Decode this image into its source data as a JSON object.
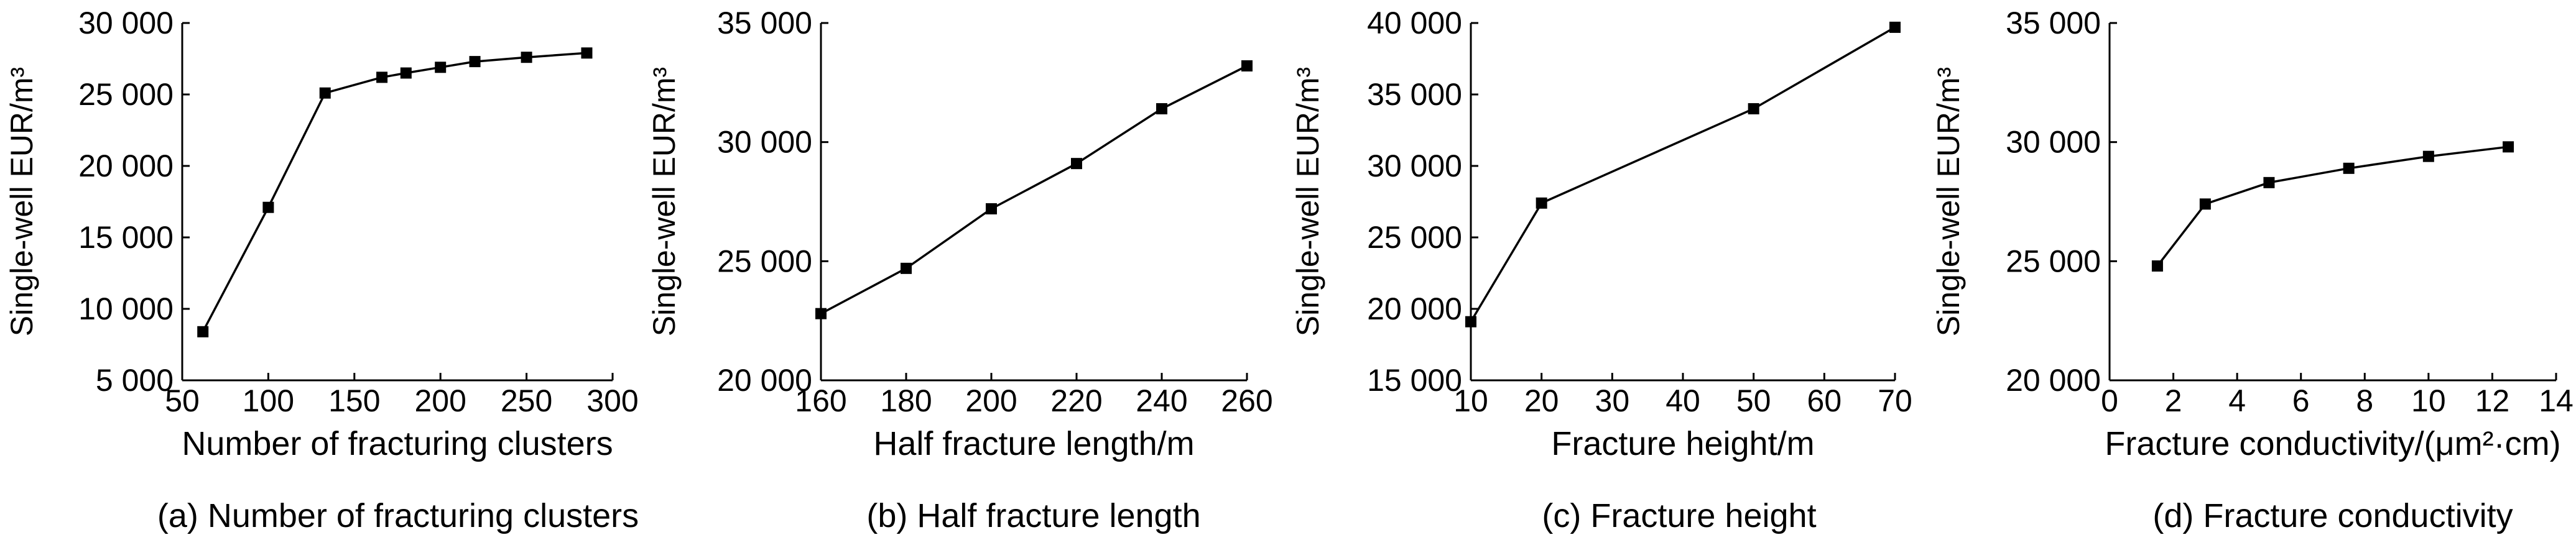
{
  "chart_data": [
    {
      "type": "line",
      "caption": "(a) Number of fracturing clusters",
      "xlabel": "Number of fracturing clusters",
      "ylabel": "Single-well EUR/m³",
      "xlim": [
        50,
        300
      ],
      "ylim": [
        5000,
        30000
      ],
      "xticks": [
        "50",
        "100",
        "150",
        "200",
        "250",
        "300"
      ],
      "yticks": [
        "5 000",
        "10 000",
        "15 000",
        "20 000",
        "25 000",
        "30 000"
      ],
      "x": [
        62,
        100,
        133,
        166,
        180,
        200,
        220,
        250,
        285
      ],
      "y": [
        8400,
        17100,
        25100,
        26200,
        26500,
        26900,
        27300,
        27600,
        27900
      ]
    },
    {
      "type": "line",
      "caption": "(b) Half fracture length",
      "xlabel": "Half fracture length/m",
      "ylabel": "Single-well EUR/m³",
      "xlim": [
        160,
        260
      ],
      "ylim": [
        20000,
        35000
      ],
      "xticks": [
        "160",
        "180",
        "200",
        "220",
        "240",
        "260"
      ],
      "yticks": [
        "20 000",
        "25 000",
        "30 000",
        "35 000"
      ],
      "x": [
        160,
        180,
        200,
        220,
        240,
        260
      ],
      "y": [
        22800,
        24700,
        27200,
        29100,
        31400,
        33200
      ]
    },
    {
      "type": "line",
      "caption": "(c) Fracture height",
      "xlabel": "Fracture height/m",
      "ylabel": "Single-well EUR/m³",
      "xlim": [
        10,
        70
      ],
      "ylim": [
        15000,
        40000
      ],
      "xticks": [
        "10",
        "20",
        "30",
        "40",
        "50",
        "60",
        "70"
      ],
      "yticks": [
        "15 000",
        "20 000",
        "25 000",
        "30 000",
        "35 000",
        "40 000"
      ],
      "x": [
        10,
        20,
        50,
        70
      ],
      "y": [
        19100,
        27400,
        34000,
        39700
      ]
    },
    {
      "type": "line",
      "caption": "(d) Fracture conductivity",
      "xlabel": "Fracture conductivity/(μm²·cm)",
      "ylabel": "Single-well EUR/m³",
      "xlim": [
        0,
        14
      ],
      "ylim": [
        20000,
        35000
      ],
      "xticks": [
        "0",
        "2",
        "4",
        "6",
        "8",
        "10",
        "12",
        "14"
      ],
      "yticks": [
        "20 000",
        "25 000",
        "30 000",
        "35 000"
      ],
      "x": [
        1.5,
        3,
        5,
        7.5,
        10,
        12.5
      ],
      "y": [
        24800,
        27400,
        28300,
        28900,
        29400,
        29800
      ]
    }
  ]
}
